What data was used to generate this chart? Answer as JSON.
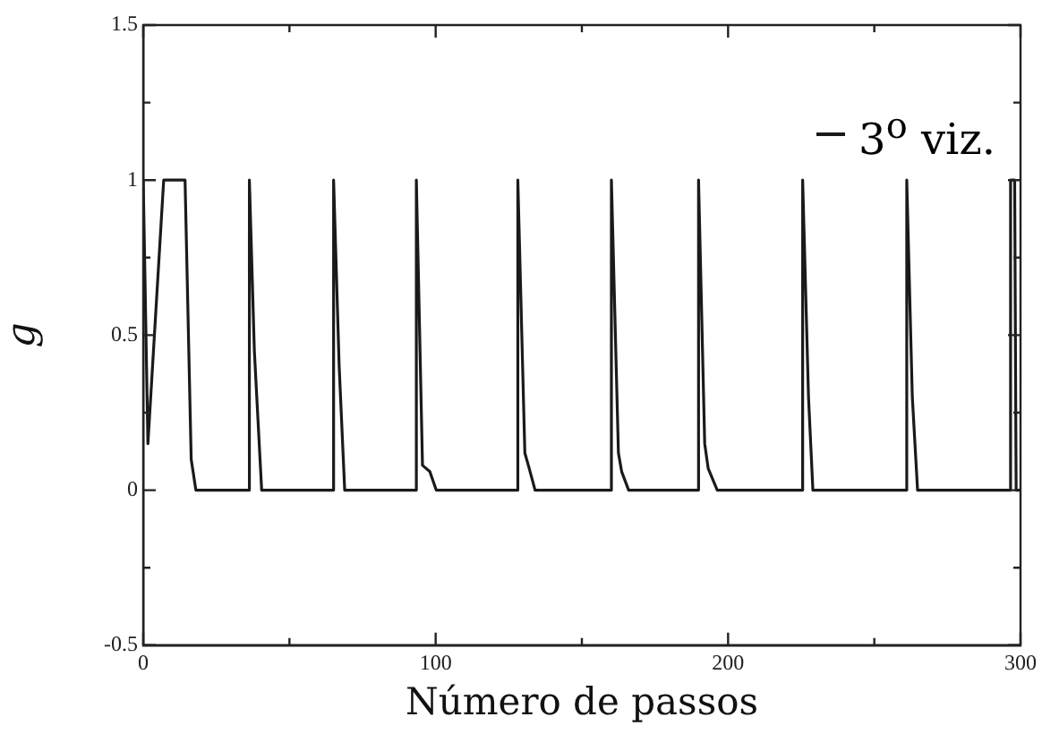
{
  "chart_data": {
    "type": "line",
    "xlabel": "Número de passos",
    "ylabel": "g",
    "x": [
      0,
      1.6,
      7,
      14.3,
      16.4,
      18,
      36.2,
      36.3,
      38,
      40.5,
      65,
      65.1,
      67,
      68.9,
      93.3,
      93.4,
      95.5,
      98,
      100.2,
      128,
      128.1,
      130.5,
      132,
      134,
      160,
      160.1,
      162.5,
      163.6,
      166,
      189.8,
      189.9,
      192,
      193.2,
      196.3,
      225.4,
      225.5,
      227.5,
      229,
      261,
      261.1,
      263,
      264.8,
      296.5,
      296.6,
      298,
      298.5,
      300
    ],
    "series": [
      {
        "name": "3$^{o}$ viz.",
        "color": "#1a1a1a",
        "values": [
          1,
          0.15,
          1,
          1,
          0.1,
          0,
          0,
          1,
          0.45,
          0,
          0,
          1,
          0.4,
          0,
          0,
          1,
          0.08,
          0.06,
          0,
          0,
          1,
          0.12,
          0.07,
          0,
          0,
          1,
          0.12,
          0.06,
          0,
          0,
          1,
          0.15,
          0.07,
          0,
          0,
          1,
          0.3,
          0,
          0,
          1,
          0.3,
          0,
          0,
          1,
          1,
          0,
          0
        ]
      }
    ],
    "xlim": [
      0,
      300
    ],
    "xticks": [
      0,
      {
        "value": 50,
        "label": null
      },
      100,
      {
        "value": 150,
        "label": null
      },
      200,
      {
        "value": 250,
        "label": null
      },
      300
    ],
    "ylim": [
      -0.5,
      1.5
    ],
    "yticks": [
      -0.5,
      {
        "value": -0.25,
        "label": null
      },
      0,
      {
        "value": 0.25,
        "label": null
      },
      0.5,
      {
        "value": 0.75,
        "label": null
      },
      1,
      {
        "value": 1.25,
        "label": null
      },
      1.5
    ],
    "grid": false,
    "legend": "top right",
    "marker": "none",
    "line_style": "solid"
  }
}
